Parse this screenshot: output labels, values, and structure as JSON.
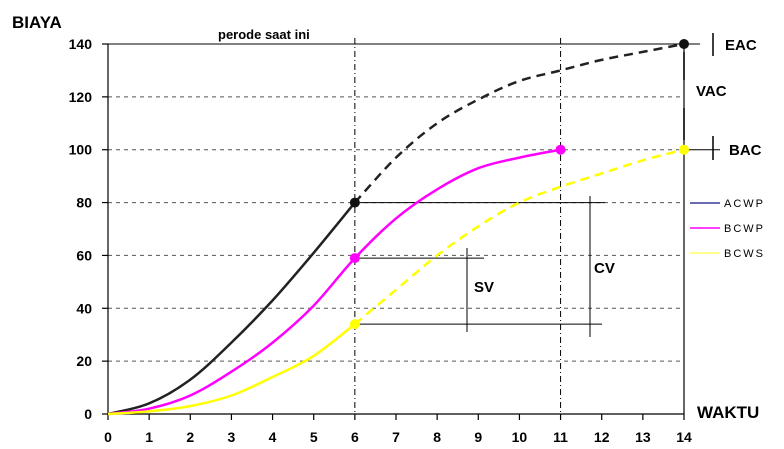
{
  "chart_data": {
    "type": "line",
    "ylabel": "BIAYA",
    "xlabel": "WAKTU",
    "xlim": [
      0,
      14
    ],
    "ylim": [
      0,
      140
    ],
    "xticks": [
      0,
      1,
      2,
      3,
      4,
      5,
      6,
      7,
      8,
      9,
      10,
      11,
      12,
      13,
      14
    ],
    "yticks": [
      0,
      20,
      40,
      60,
      80,
      100,
      120,
      140
    ],
    "grid": {
      "horizontal": "dashed",
      "vertical_at": [
        6,
        11
      ]
    },
    "current_period_label": "perode saat ini",
    "series": [
      {
        "name": "ACWP",
        "color": "#222222",
        "actual": [
          [
            0,
            0
          ],
          [
            1,
            4
          ],
          [
            2,
            13
          ],
          [
            3,
            27
          ],
          [
            4,
            43
          ],
          [
            5,
            61
          ],
          [
            6,
            80
          ]
        ],
        "forecast": [
          [
            6,
            80
          ],
          [
            7,
            97
          ],
          [
            8,
            110
          ],
          [
            9,
            119
          ],
          [
            10,
            126
          ],
          [
            11,
            130
          ],
          [
            12,
            134
          ],
          [
            13,
            137
          ],
          [
            14,
            140
          ]
        ]
      },
      {
        "name": "BCWP",
        "color": "#ff00ff",
        "actual": [
          [
            0,
            0
          ],
          [
            1,
            2
          ],
          [
            2,
            7
          ],
          [
            3,
            16
          ],
          [
            4,
            27
          ],
          [
            5,
            41
          ],
          [
            6,
            59
          ],
          [
            7,
            74
          ],
          [
            8,
            85
          ],
          [
            9,
            93
          ],
          [
            10,
            97
          ],
          [
            11,
            100
          ]
        ]
      },
      {
        "name": "BCWS",
        "color": "#ffff00",
        "actual": [
          [
            0,
            0
          ],
          [
            1,
            1
          ],
          [
            2,
            3
          ],
          [
            3,
            7
          ],
          [
            4,
            14
          ],
          [
            5,
            22
          ],
          [
            6,
            34
          ]
        ],
        "forecast": [
          [
            6,
            34
          ],
          [
            7,
            47
          ],
          [
            8,
            60
          ],
          [
            9,
            71
          ],
          [
            10,
            80
          ],
          [
            11,
            86
          ],
          [
            12,
            91
          ],
          [
            13,
            96
          ],
          [
            14,
            100
          ]
        ]
      }
    ],
    "markers": [
      {
        "x": 6,
        "y": 80,
        "color": "#111111"
      },
      {
        "x": 6,
        "y": 59,
        "color": "#ff00ff"
      },
      {
        "x": 6,
        "y": 34,
        "color": "#ffff00"
      },
      {
        "x": 11,
        "y": 100,
        "color": "#ff00ff"
      },
      {
        "x": 14,
        "y": 140,
        "color": "#111111"
      },
      {
        "x": 14,
        "y": 100,
        "color": "#ffff00"
      }
    ],
    "annotations": {
      "EAC": {
        "label": "EAC",
        "value": 140
      },
      "BAC": {
        "label": "BAC",
        "value": 100
      },
      "VAC": {
        "label": "VAC",
        "from": 100,
        "to": 140
      },
      "SV": {
        "label": "SV",
        "from": 34,
        "to": 59
      },
      "CV": {
        "label": "CV",
        "from": 34,
        "to": 80
      }
    },
    "legend": {
      "position": "right",
      "entries": [
        {
          "label": "ACWP",
          "color": "#3a3a9a"
        },
        {
          "label": "BCWP",
          "color": "#ff00ff"
        },
        {
          "label": "BCWS",
          "color": "#ffff66"
        }
      ]
    }
  }
}
